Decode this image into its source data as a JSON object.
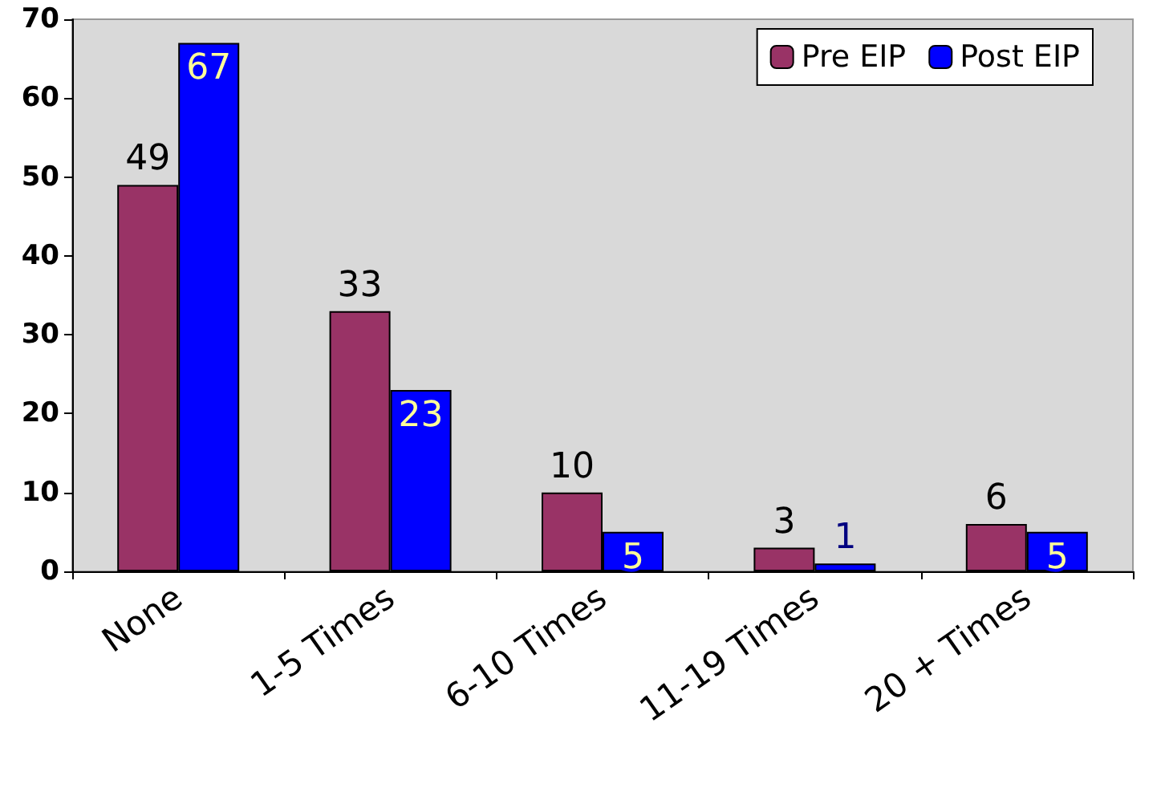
{
  "chart_data": {
    "type": "bar",
    "categories": [
      "None",
      "1-5 Times",
      "6-10 Times",
      "11-19 Times",
      "20 + Times"
    ],
    "series": [
      {
        "name": "Pre EIP",
        "color": "#993366",
        "values": [
          49,
          33,
          10,
          3,
          6
        ]
      },
      {
        "name": "Post EIP",
        "color": "#0000ff",
        "values": [
          67,
          23,
          5,
          1,
          5
        ]
      }
    ],
    "ylim": [
      0,
      70
    ],
    "yticks": [
      0,
      10,
      20,
      30,
      40,
      50,
      60,
      70
    ],
    "data_labels": true,
    "legend": "top right",
    "grid": false
  }
}
